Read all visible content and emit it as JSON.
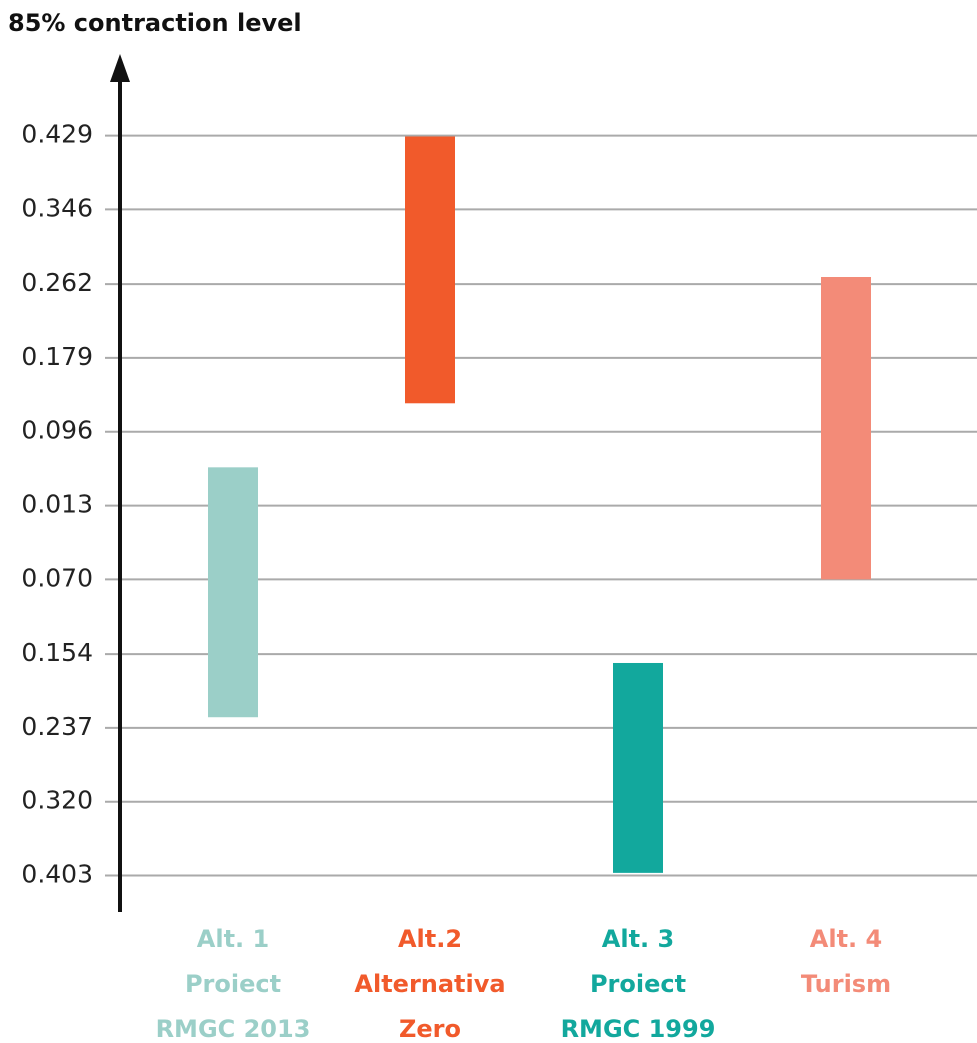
{
  "chart_data": {
    "type": "floating_bar",
    "y_label": "85% contraction level",
    "categories": [
      [
        "Alt. 1",
        "Proiect",
        "RMGC 2013"
      ],
      [
        "Alt.2",
        "Alternativa",
        "Zero"
      ],
      [
        "Alt. 3",
        "Proiect",
        "RMGC 1999"
      ],
      [
        "Alt. 4",
        "Turism"
      ]
    ],
    "low": [
      -0.225,
      0.128,
      -0.4,
      -0.07
    ],
    "high": [
      0.056,
      0.428,
      -0.164,
      0.27
    ],
    "colors": [
      "#9bcfc8",
      "#f15a2b",
      "#12a89d",
      "#f38b78"
    ],
    "ylim": [
      -0.444,
      0.514
    ],
    "yticks": [
      0.429,
      0.346,
      0.262,
      0.179,
      0.096,
      0.013,
      {
        "value": -0.07,
        "label": "0.070"
      },
      {
        "value": -0.154,
        "label": "0.154"
      },
      {
        "value": -0.237,
        "label": "0.237"
      },
      {
        "value": -0.32,
        "label": "0.320"
      },
      {
        "value": -0.403,
        "label": "0.403"
      }
    ],
    "grid": true
  }
}
